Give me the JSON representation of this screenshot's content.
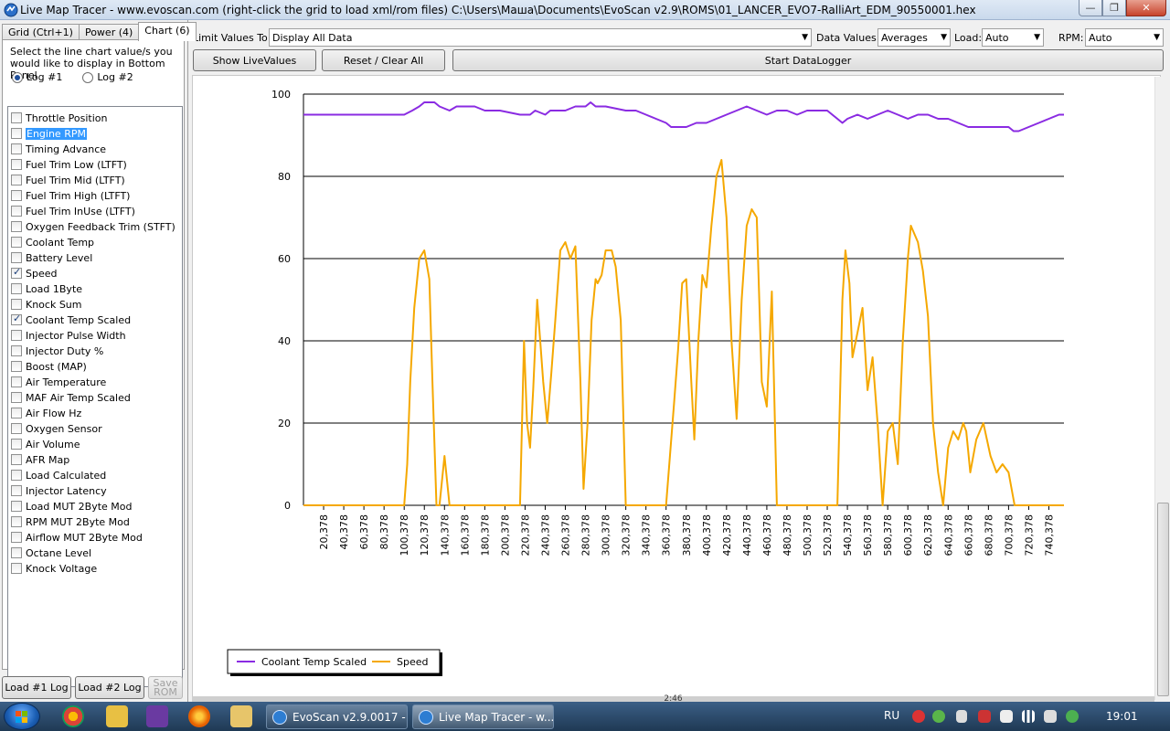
{
  "window": {
    "title": "Live Map Tracer - www.evoscan.com (right-click the grid to load xml/rom files) C:\\Users\\Маша\\Documents\\EvoScan v2.9\\ROMS\\01_LANCER_EVO7-RalliArt_EDM_90550001.hex",
    "minimize": "—",
    "maximize": "❐",
    "close": "✕"
  },
  "tabs": [
    {
      "label": "Grid (Ctrl+1)"
    },
    {
      "label": "Power (4)"
    },
    {
      "label": "Chart (6)"
    }
  ],
  "left": {
    "instructions": "Select the line chart value/s you would like to display in Bottom Panel",
    "radios": [
      {
        "label": "Log #1",
        "checked": true
      },
      {
        "label": "Log #2",
        "checked": false
      }
    ],
    "items": [
      {
        "label": "Throttle Position",
        "checked": false
      },
      {
        "label": "Engine RPM",
        "checked": false,
        "selected": true
      },
      {
        "label": "Timing Advance",
        "checked": false
      },
      {
        "label": "Fuel Trim Low (LTFT)",
        "checked": false
      },
      {
        "label": "Fuel Trim Mid (LTFT)",
        "checked": false
      },
      {
        "label": "Fuel Trim High (LTFT)",
        "checked": false
      },
      {
        "label": "Fuel Trim InUse (LTFT)",
        "checked": false
      },
      {
        "label": "Oxygen Feedback Trim (STFT)",
        "checked": false
      },
      {
        "label": "Coolant Temp",
        "checked": false
      },
      {
        "label": "Battery Level",
        "checked": false
      },
      {
        "label": "Speed",
        "checked": true
      },
      {
        "label": "Load 1Byte",
        "checked": false
      },
      {
        "label": "Knock Sum",
        "checked": false
      },
      {
        "label": "Coolant Temp Scaled",
        "checked": true
      },
      {
        "label": "Injector Pulse Width",
        "checked": false
      },
      {
        "label": "Injector Duty %",
        "checked": false
      },
      {
        "label": "Boost (MAP)",
        "checked": false
      },
      {
        "label": "Air Temperature",
        "checked": false
      },
      {
        "label": "MAF Air Temp Scaled",
        "checked": false
      },
      {
        "label": "Air Flow Hz",
        "checked": false
      },
      {
        "label": "Oxygen Sensor",
        "checked": false
      },
      {
        "label": "Air Volume",
        "checked": false
      },
      {
        "label": "AFR Map",
        "checked": false
      },
      {
        "label": "Load Calculated",
        "checked": false
      },
      {
        "label": "Injector Latency",
        "checked": false
      },
      {
        "label": "Load MUT 2Byte Mod",
        "checked": false
      },
      {
        "label": "RPM MUT 2Byte Mod",
        "checked": false
      },
      {
        "label": "Airflow MUT 2Byte Mod",
        "checked": false
      },
      {
        "label": "Octane Level",
        "checked": false
      },
      {
        "label": "Knock Voltage",
        "checked": false
      }
    ],
    "buttons": {
      "load1": "Load #1 Log",
      "load2": "Load #2 Log",
      "save_rom": "Save ROM"
    }
  },
  "toolbar": {
    "limit_label": "Limit Values To:",
    "limit_value": "Display All Data",
    "data_values_label": "Data Values:",
    "data_values_value": "Averages",
    "load_label": "Load:",
    "load_value": "Auto",
    "rpm_label": "RPM:",
    "rpm_value": "Auto",
    "show_live": "Show LiveValues",
    "reset": "Reset / Clear All",
    "start_logger": "Start DataLogger"
  },
  "status_readout": "2:46",
  "chart_data": {
    "type": "line",
    "ylim": [
      0,
      100
    ],
    "yticks": [
      0,
      20,
      40,
      60,
      80,
      100
    ],
    "xlim": [
      0,
      755
    ],
    "xticks": [
      "20,378",
      "40,378",
      "60,378",
      "80,378",
      "100,378",
      "120,378",
      "140,378",
      "160,378",
      "180,378",
      "200,378",
      "220,378",
      "240,378",
      "260,378",
      "280,378",
      "300,378",
      "320,378",
      "340,378",
      "360,378",
      "380,378",
      "400,378",
      "420,378",
      "440,378",
      "460,378",
      "480,378",
      "500,378",
      "520,378",
      "540,378",
      "560,378",
      "580,378",
      "600,378",
      "620,378",
      "640,378",
      "660,378",
      "680,378",
      "700,378",
      "720,378",
      "740,378"
    ],
    "grid": "horizontal",
    "legend_position": "bottom-left",
    "series": [
      {
        "name": "Coolant Temp Scaled",
        "color": "#8a2be2",
        "x": [
          0,
          100,
          108,
          115,
          120,
          130,
          135,
          145,
          152,
          170,
          180,
          195,
          215,
          225,
          230,
          240,
          245,
          260,
          270,
          280,
          285,
          290,
          300,
          320,
          330,
          340,
          350,
          360,
          365,
          380,
          390,
          400,
          410,
          420,
          430,
          440,
          450,
          460,
          470,
          480,
          490,
          500,
          520,
          530,
          535,
          540,
          550,
          560,
          570,
          580,
          590,
          600,
          610,
          620,
          630,
          640,
          650,
          660,
          670,
          680,
          690,
          700,
          705,
          710,
          720,
          730,
          740,
          750,
          755
        ],
        "values": [
          95,
          95,
          96,
          97,
          98,
          98,
          97,
          96,
          97,
          97,
          96,
          96,
          95,
          95,
          96,
          95,
          96,
          96,
          97,
          97,
          98,
          97,
          97,
          96,
          96,
          95,
          94,
          93,
          92,
          92,
          93,
          93,
          94,
          95,
          96,
          97,
          96,
          95,
          96,
          96,
          95,
          96,
          96,
          94,
          93,
          94,
          95,
          94,
          95,
          96,
          95,
          94,
          95,
          95,
          94,
          94,
          93,
          92,
          92,
          92,
          92,
          92,
          91,
          91,
          92,
          93,
          94,
          95,
          95
        ]
      },
      {
        "name": "Speed",
        "color": "#f5a800",
        "x": [
          0,
          100,
          103,
          106,
          110,
          115,
          120,
          125,
          128,
          132,
          135,
          140,
          145,
          150,
          155,
          160,
          200,
          215,
          219,
          222,
          225,
          228,
          232,
          238,
          242,
          246,
          250,
          255,
          260,
          265,
          270,
          275,
          278,
          282,
          286,
          290,
          292,
          296,
          300,
          306,
          310,
          315,
          320,
          325,
          330,
          335,
          340,
          350,
          360,
          368,
          372,
          376,
          380,
          385,
          388,
          392,
          396,
          400,
          405,
          410,
          415,
          420,
          425,
          430,
          435,
          440,
          445,
          450,
          455,
          460,
          465,
          470,
          475,
          478,
          482,
          486,
          490,
          500,
          530,
          535,
          538,
          542,
          545,
          550,
          555,
          560,
          565,
          570,
          575,
          580,
          585,
          590,
          595,
          600,
          603,
          610,
          615,
          620,
          625,
          630,
          635,
          640,
          645,
          650,
          655,
          658,
          662,
          668,
          675,
          682,
          688,
          694,
          700,
          706,
          712,
          718,
          724,
          730,
          740,
          755
        ],
        "values": [
          0,
          0,
          10,
          30,
          48,
          60,
          62,
          55,
          30,
          0,
          0,
          12,
          0,
          0,
          0,
          0,
          0,
          0,
          40,
          20,
          14,
          28,
          50,
          30,
          20,
          32,
          45,
          62,
          64,
          60,
          63,
          30,
          4,
          20,
          45,
          55,
          54,
          56,
          62,
          62,
          58,
          45,
          0,
          0,
          0,
          0,
          0,
          0,
          0,
          25,
          38,
          54,
          55,
          30,
          16,
          40,
          56,
          53,
          68,
          80,
          84,
          70,
          40,
          21,
          50,
          68,
          72,
          70,
          30,
          24,
          52,
          0,
          0,
          0,
          0,
          0,
          0,
          0,
          0,
          50,
          62,
          54,
          36,
          42,
          48,
          28,
          36,
          20,
          0,
          18,
          20,
          10,
          40,
          60,
          68,
          64,
          57,
          46,
          20,
          8,
          0,
          14,
          18,
          16,
          20,
          18,
          8,
          16,
          20,
          12,
          8,
          10,
          8,
          0,
          0,
          0,
          0,
          0,
          0,
          0
        ]
      }
    ]
  },
  "taskbar": {
    "tasks": [
      {
        "label": "EvoScan v2.9.0017 - ..."
      },
      {
        "label": "Live Map Tracer - w..."
      }
    ],
    "lang": "RU",
    "clock": "19:01"
  }
}
